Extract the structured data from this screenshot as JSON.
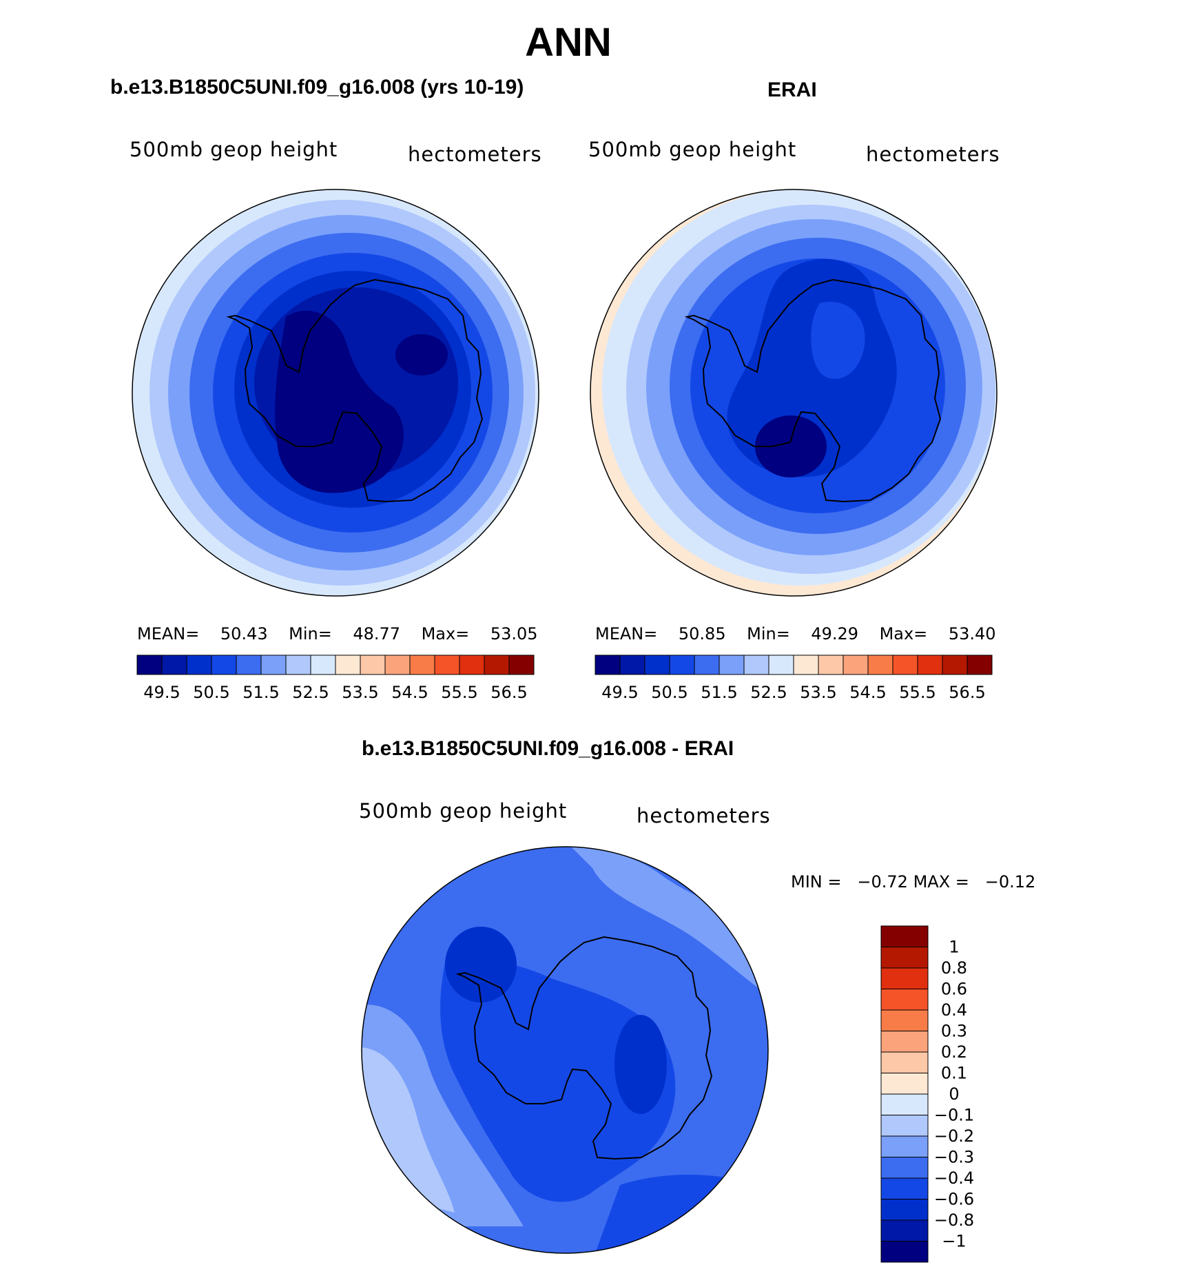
{
  "figure": {
    "title": "ANN"
  },
  "palette": [
    "#000080",
    "#0018a8",
    "#0030cc",
    "#1448e6",
    "#3c6cf0",
    "#7aa0fa",
    "#b0c8fc",
    "#d8e8fc",
    "#fde8d4",
    "#fcc8a8",
    "#fba47c",
    "#f87c48",
    "#f45428",
    "#e03010",
    "#b41800",
    "#840000"
  ],
  "panels": [
    {
      "id": "model",
      "title": "b.e13.B1850C5UNI.f09_g16.008 (yrs 10-19)",
      "left_label": "500mb  geop  height",
      "right_label": "hectometers",
      "stats": {
        "mean_label": "MEAN=",
        "mean": "50.43",
        "min_label": "Min=",
        "min": "48.77",
        "max_label": "Max=",
        "max": "53.05"
      },
      "colorbar_ticks": [
        "49.5",
        "50.5",
        "51.5",
        "52.5",
        "53.5",
        "54.5",
        "55.5",
        "56.5"
      ]
    },
    {
      "id": "obs",
      "title": "ERAI",
      "left_label": "500mb  geop  height",
      "right_label": "hectometers",
      "stats": {
        "mean_label": "MEAN=",
        "mean": "50.85",
        "min_label": "Min=",
        "min": "49.29",
        "max_label": "Max=",
        "max": "53.40"
      },
      "colorbar_ticks": [
        "49.5",
        "50.5",
        "51.5",
        "52.5",
        "53.5",
        "54.5",
        "55.5",
        "56.5"
      ]
    }
  ],
  "difference": {
    "title": "b.e13.B1850C5UNI.f09_g16.008 - ERAI",
    "left_label": "500mb  geop  height",
    "right_label": "hectometers",
    "minmax": {
      "min_label": "MIN =",
      "min": "−0.72",
      "max_label": "MAX =",
      "max": "−0.12"
    },
    "colorbar_labels": [
      "1",
      "0.8",
      "0.6",
      "0.4",
      "0.3",
      "0.2",
      "0.1",
      "0",
      "−0.1",
      "−0.2",
      "−0.3",
      "−0.4",
      "−0.6",
      "−0.8",
      "−1"
    ],
    "colorbar_colors": [
      "#840000",
      "#b41800",
      "#e03010",
      "#f45428",
      "#f87c48",
      "#fba47c",
      "#fcc8a8",
      "#fde8d4",
      "#d8e8fc",
      "#b0c8fc",
      "#7aa0fa",
      "#3c6cf0",
      "#1448e6",
      "#0030cc",
      "#0018a8",
      "#000080"
    ]
  }
}
